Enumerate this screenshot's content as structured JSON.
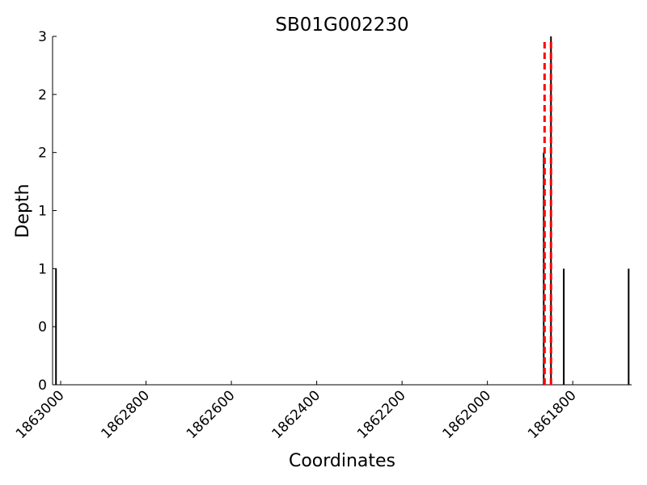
{
  "chart_data": {
    "type": "stem",
    "title": "SB01G002230",
    "xlabel": "Coordinates",
    "ylabel": "Depth",
    "series": [
      {
        "color": "#000000",
        "x": [
          1863011,
          1861868,
          1861851,
          1861821,
          1861669
        ],
        "values": [
          1,
          2,
          3,
          1,
          1
        ]
      }
    ],
    "vlines": {
      "x": [
        1861866,
        1861851
      ],
      "color": "#ff0000",
      "style": "dashed"
    },
    "xlim": [
      1863019,
      1861662
    ],
    "xticks": [
      1863000,
      1862800,
      1862600,
      1862400,
      1862200,
      1862000,
      1861800
    ],
    "ylim": [
      0,
      3
    ],
    "yticks": [
      0,
      {
        "value": 0.5,
        "label": "0"
      },
      1,
      {
        "value": 1.5,
        "label": "1"
      },
      2,
      {
        "value": 2.5,
        "label": "2"
      },
      3
    ],
    "grid": false
  }
}
